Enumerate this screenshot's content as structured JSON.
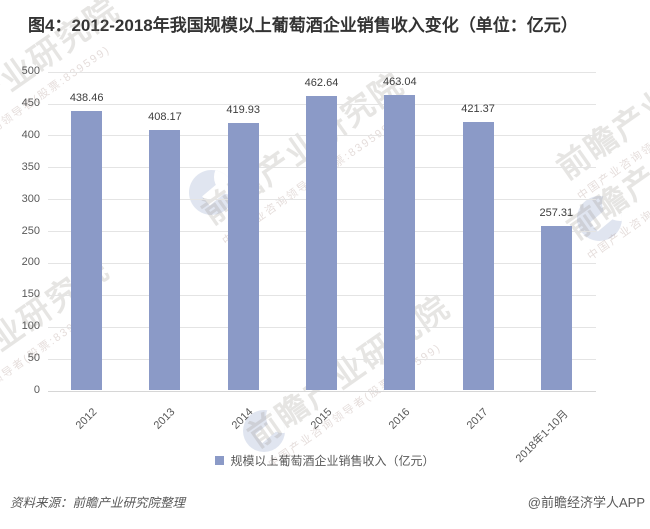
{
  "title": "图4：2012-2018年我国规模以上葡萄酒企业销售收入变化（单位：亿元）",
  "legend_label": "规模以上葡萄酒企业销售收入（亿元）",
  "source_left": "资料来源：前瞻产业研究院整理",
  "source_right": "@前瞻经济学人APP",
  "watermark": {
    "brand": "前瞻产业研究院",
    "tagline": "中国产业咨询领导者(股票:839599)"
  },
  "colors": {
    "bar": "#8b9ac7",
    "grid": "#e4e4e4",
    "axis_text": "#595959",
    "value_text": "#3d3d3d",
    "title_text": "#333333"
  },
  "chart_data": {
    "type": "bar",
    "title": "图4：2012-2018年我国规模以上葡萄酒企业销售收入变化（单位：亿元）",
    "categories": [
      "2012",
      "2013",
      "2014",
      "2015",
      "2016",
      "2017",
      "2018年1-10月"
    ],
    "values": [
      438.46,
      408.17,
      419.93,
      462.64,
      463.04,
      421.37,
      257.31
    ],
    "value_labels": [
      "438.46",
      "408.17",
      "419.93",
      "462.64",
      "463.04",
      "421.37",
      "257.31"
    ],
    "legend": "规模以上葡萄酒企业销售收入（亿元）",
    "xlabel": "",
    "ylabel": "",
    "ylim": [
      0,
      500
    ],
    "yticks": [
      0,
      50,
      100,
      150,
      200,
      250,
      300,
      350,
      400,
      450,
      500
    ],
    "grid": true,
    "legend_position": "bottom"
  }
}
